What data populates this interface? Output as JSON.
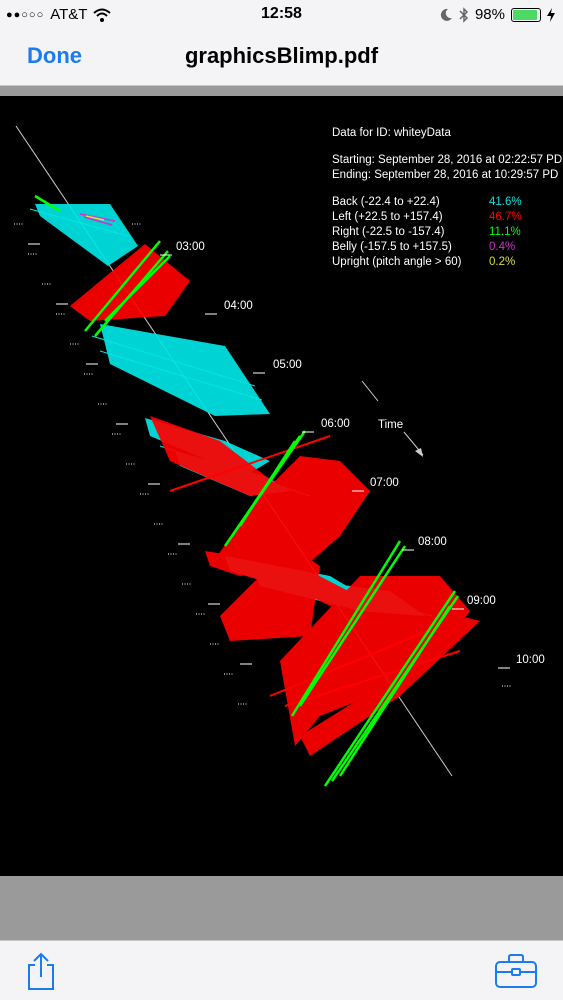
{
  "status": {
    "carrier": "AT&T",
    "time": "12:58",
    "battery": "98%"
  },
  "nav": {
    "done_label": "Done",
    "title": "graphicsBlimp.pdf"
  },
  "pdf": {
    "info": {
      "id_line": "Data for ID: whiteyData",
      "starting": "Starting: September 28, 2016 at 02:22:57 PD",
      "ending": "Ending:  September 28, 2016 at 10:29:57 PD"
    },
    "time_label": "Time",
    "hours": [
      "03:00",
      "04:00",
      "05:00",
      "06:00",
      "07:00",
      "08:00",
      "09:00",
      "10:00"
    ],
    "legend": [
      {
        "label": "Back (-22.4 to +22.4)",
        "value": "41.6%",
        "color": "#00e5e5"
      },
      {
        "label": "Left (+22.5 to +157.4)",
        "value": "46.7%",
        "color": "#ff0000"
      },
      {
        "label": "Right (-22.5 to -157.4)",
        "value": "11.1%",
        "color": "#00ff00"
      },
      {
        "label": "Belly (-157.5 to +157.5)",
        "value": "0.4%",
        "color": "#cc33cc"
      },
      {
        "label": "Upright (pitch angle > 60)",
        "value": "0.2%",
        "color": "#dddd44"
      }
    ]
  },
  "icons": {
    "share": "share-icon",
    "tools": "toolbox-icon",
    "signal": "signal-dots-icon",
    "wifi": "wifi-icon",
    "moon": "moon-icon",
    "bluetooth": "bluetooth-icon",
    "charging": "charging-bolt-icon"
  }
}
